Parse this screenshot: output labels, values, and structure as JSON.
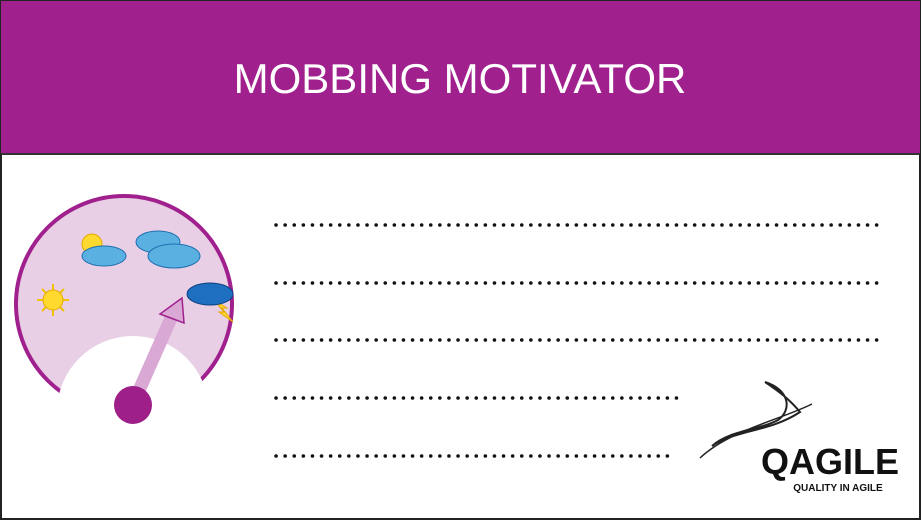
{
  "header": {
    "title": "MOBBING MOTIVATOR"
  },
  "logo": {
    "name": "QAGILE",
    "tagline": "QUALITY IN AGILE"
  }
}
